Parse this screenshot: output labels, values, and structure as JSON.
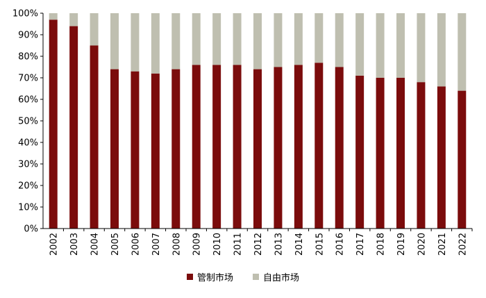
{
  "chart_data": {
    "type": "bar",
    "stacked": true,
    "categories": [
      "2002",
      "2003",
      "2004",
      "2005",
      "2006",
      "2007",
      "2008",
      "2009",
      "2010",
      "2011",
      "2012",
      "2013",
      "2014",
      "2015",
      "2016",
      "2017",
      "2018",
      "2019",
      "2020",
      "2021",
      "2022"
    ],
    "series": [
      {
        "name": "管制市场",
        "color": "#7b0c0c",
        "values": [
          97,
          94,
          85,
          74,
          73,
          72,
          74,
          76,
          76,
          76,
          74,
          75,
          76,
          77,
          75,
          71,
          70,
          70,
          68,
          66,
          64
        ]
      },
      {
        "name": "自由市场",
        "color": "#bfbfb0",
        "values": [
          3,
          6,
          15,
          26,
          27,
          28,
          26,
          24,
          24,
          24,
          26,
          25,
          24,
          23,
          25,
          29,
          30,
          30,
          32,
          34,
          36
        ]
      }
    ],
    "ylim": [
      0,
      100
    ],
    "yticks": [
      "0%",
      "10%",
      "20%",
      "30%",
      "40%",
      "50%",
      "60%",
      "70%",
      "80%",
      "90%",
      "100%"
    ],
    "legend_position": "bottom",
    "grid": false
  }
}
